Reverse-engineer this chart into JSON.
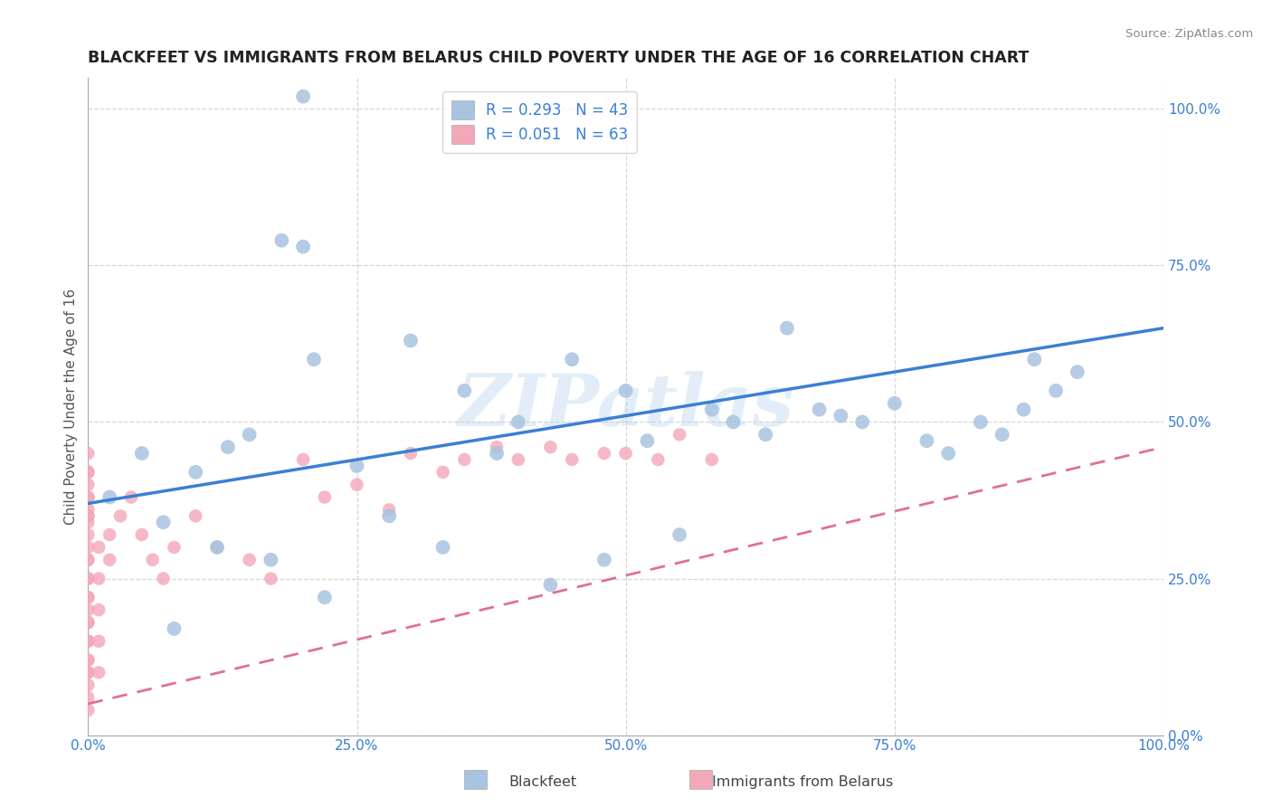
{
  "title": "BLACKFEET VS IMMIGRANTS FROM BELARUS CHILD POVERTY UNDER THE AGE OF 16 CORRELATION CHART",
  "source": "Source: ZipAtlas.com",
  "ylabel": "Child Poverty Under the Age of 16",
  "watermark": "ZIPatlas",
  "blackfeet_R": 0.293,
  "blackfeet_N": 43,
  "belarus_R": 0.051,
  "belarus_N": 63,
  "blackfeet_color": "#a8c4e0",
  "belarus_color": "#f4a7b9",
  "blackfeet_line_color": "#3a7fd5",
  "belarus_line_color": "#e07090",
  "title_color": "#222222",
  "legend_text_color": "#3a7fd5",
  "background_color": "#ffffff",
  "grid_color": "#cccccc",
  "xmin": 0.0,
  "xmax": 1.0,
  "ymin": 0.0,
  "ymax": 1.05,
  "bf_line_x0": 0.0,
  "bf_line_y0": 0.37,
  "bf_line_x1": 1.0,
  "bf_line_y1": 0.65,
  "bel_line_x0": 0.0,
  "bel_line_y0": 0.05,
  "bel_line_x1": 1.0,
  "bel_line_y1": 0.46,
  "blackfeet_x": [
    0.02,
    0.07,
    0.1,
    0.12,
    0.13,
    0.15,
    0.17,
    0.18,
    0.2,
    0.21,
    0.22,
    0.25,
    0.28,
    0.3,
    0.33,
    0.35,
    0.38,
    0.4,
    0.43,
    0.45,
    0.48,
    0.5,
    0.52,
    0.55,
    0.58,
    0.6,
    0.63,
    0.65,
    0.68,
    0.7,
    0.72,
    0.75,
    0.78,
    0.8,
    0.83,
    0.85,
    0.87,
    0.88,
    0.9,
    0.92,
    0.05,
    0.08,
    0.2
  ],
  "blackfeet_y": [
    0.38,
    0.34,
    0.42,
    0.3,
    0.46,
    0.48,
    0.28,
    0.79,
    0.78,
    0.6,
    0.22,
    0.43,
    0.35,
    0.63,
    0.3,
    0.55,
    0.45,
    0.5,
    0.24,
    0.6,
    0.28,
    0.55,
    0.47,
    0.32,
    0.52,
    0.5,
    0.48,
    0.65,
    0.52,
    0.51,
    0.5,
    0.53,
    0.47,
    0.45,
    0.5,
    0.48,
    0.52,
    0.6,
    0.55,
    0.58,
    0.45,
    0.17,
    1.02
  ],
  "belarus_x": [
    0.0,
    0.0,
    0.0,
    0.0,
    0.0,
    0.0,
    0.0,
    0.0,
    0.0,
    0.0,
    0.0,
    0.0,
    0.0,
    0.0,
    0.0,
    0.0,
    0.0,
    0.0,
    0.0,
    0.0,
    0.0,
    0.0,
    0.0,
    0.0,
    0.0,
    0.0,
    0.0,
    0.0,
    0.0,
    0.0,
    0.01,
    0.01,
    0.01,
    0.01,
    0.01,
    0.02,
    0.02,
    0.03,
    0.04,
    0.05,
    0.06,
    0.07,
    0.08,
    0.1,
    0.12,
    0.15,
    0.17,
    0.2,
    0.22,
    0.25,
    0.28,
    0.3,
    0.33,
    0.35,
    0.38,
    0.4,
    0.43,
    0.45,
    0.48,
    0.5,
    0.53,
    0.55,
    0.58
  ],
  "belarus_y": [
    0.36,
    0.34,
    0.3,
    0.28,
    0.25,
    0.22,
    0.2,
    0.18,
    0.15,
    0.12,
    0.1,
    0.08,
    0.06,
    0.04,
    0.38,
    0.4,
    0.42,
    0.35,
    0.32,
    0.28,
    0.25,
    0.22,
    0.18,
    0.15,
    0.12,
    0.1,
    0.45,
    0.42,
    0.38,
    0.35,
    0.3,
    0.25,
    0.2,
    0.15,
    0.1,
    0.32,
    0.28,
    0.35,
    0.38,
    0.32,
    0.28,
    0.25,
    0.3,
    0.35,
    0.3,
    0.28,
    0.25,
    0.44,
    0.38,
    0.4,
    0.36,
    0.45,
    0.42,
    0.44,
    0.46,
    0.44,
    0.46,
    0.44,
    0.45,
    0.45,
    0.44,
    0.48,
    0.44
  ]
}
